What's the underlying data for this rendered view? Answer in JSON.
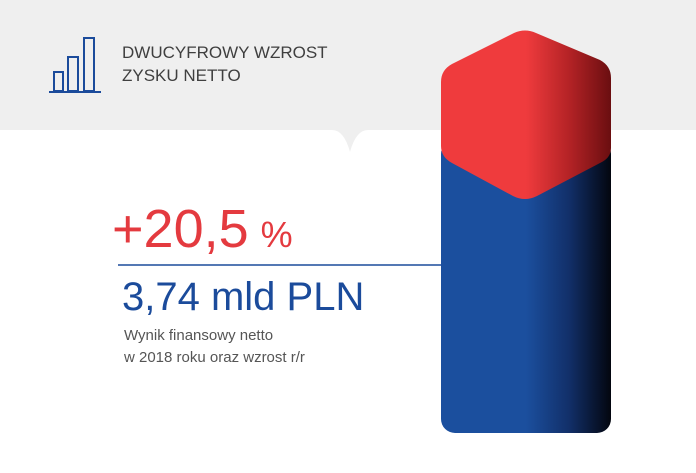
{
  "header": {
    "title_lines": [
      "DWUCYFROWY WZROST",
      "ZYSKU NETTO"
    ]
  },
  "headline": {
    "change": "+20,5",
    "change_unit": "%",
    "amount": "3,74 mld PLN"
  },
  "description": {
    "lines": [
      "Wynik finansowy netto",
      "w 2018 roku oraz wzrost r/r"
    ]
  }
}
